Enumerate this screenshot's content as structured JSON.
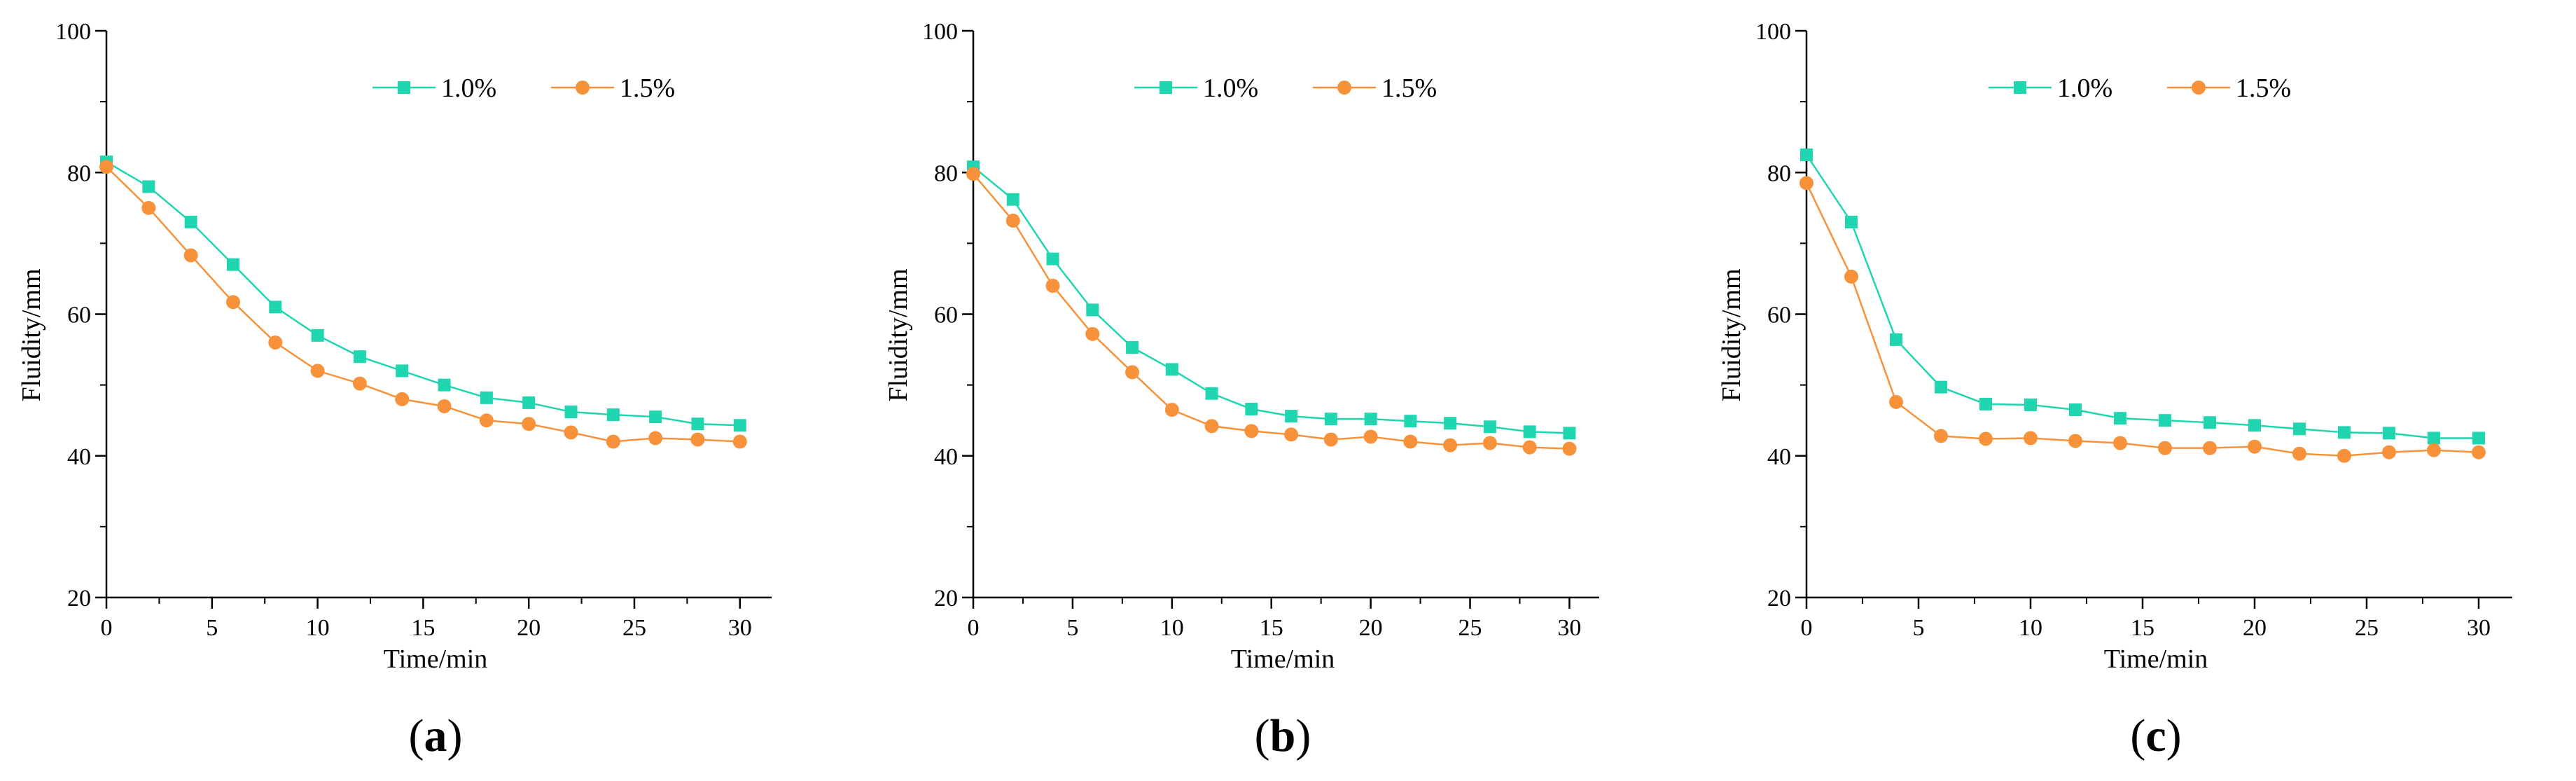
{
  "colors": {
    "series_1": "#1fd6b0",
    "series_2": "#f7923a",
    "axis": "#000000"
  },
  "chart_data": [
    {
      "type": "line",
      "panel_label": "(a)",
      "panel_letter": "a",
      "xlabel": "Time/min",
      "ylabel": "Fluidity/mm",
      "xlim": [
        0,
        31.5
      ],
      "ylim": [
        20,
        100
      ],
      "xticks": [
        0,
        5,
        10,
        15,
        20,
        25,
        30
      ],
      "yticks": [
        20,
        40,
        60,
        80,
        100
      ],
      "x": [
        0,
        2,
        4,
        6,
        8,
        10,
        12,
        14,
        16,
        18,
        20,
        22,
        24,
        26,
        28,
        30
      ],
      "series": [
        {
          "name": "1.0%",
          "marker": "square",
          "values": [
            81.5,
            78,
            73,
            67,
            61,
            57,
            54,
            52,
            50,
            48.2,
            47.5,
            46.2,
            45.8,
            45.5,
            44.5,
            44.3
          ]
        },
        {
          "name": "1.5%",
          "marker": "circle",
          "values": [
            80.8,
            75,
            68.3,
            61.7,
            56,
            52,
            50.2,
            48,
            47,
            45,
            44.5,
            43.3,
            42,
            42.5,
            42.3,
            42
          ]
        }
      ],
      "legend": "top-center"
    },
    {
      "type": "line",
      "panel_label": "(b)",
      "panel_letter": "b",
      "xlabel": "Time/min",
      "ylabel": "Fluidity/mm",
      "xlim": [
        0,
        31.5
      ],
      "ylim": [
        20,
        100
      ],
      "xticks": [
        0,
        5,
        10,
        15,
        20,
        25,
        30
      ],
      "yticks": [
        20,
        40,
        60,
        80,
        100
      ],
      "x": [
        0,
        2,
        4,
        6,
        8,
        10,
        12,
        14,
        16,
        18,
        20,
        22,
        24,
        26,
        28,
        30
      ],
      "series": [
        {
          "name": "1.0%",
          "marker": "square",
          "values": [
            80.8,
            76.2,
            67.8,
            60.6,
            55.3,
            52.2,
            48.8,
            46.6,
            45.6,
            45.2,
            45.2,
            44.9,
            44.6,
            44.1,
            43.4,
            43.2
          ]
        },
        {
          "name": "1.5%",
          "marker": "circle",
          "values": [
            79.8,
            73.2,
            64,
            57.2,
            51.8,
            46.5,
            44.2,
            43.5,
            43,
            42.3,
            42.7,
            42,
            41.5,
            41.8,
            41.2,
            41
          ]
        }
      ],
      "legend": "top-center"
    },
    {
      "type": "line",
      "panel_label": "(c)",
      "panel_letter": "c",
      "xlabel": "Time/min",
      "ylabel": "Fluidity/mm",
      "xlim": [
        0,
        31.5
      ],
      "ylim": [
        20,
        100
      ],
      "xticks": [
        0,
        5,
        10,
        15,
        20,
        25,
        30
      ],
      "yticks": [
        20,
        40,
        60,
        80,
        100
      ],
      "x": [
        0,
        2,
        4,
        6,
        8,
        10,
        12,
        14,
        16,
        18,
        20,
        22,
        24,
        26,
        28,
        30
      ],
      "series": [
        {
          "name": "1.0%",
          "marker": "square",
          "values": [
            82.5,
            73,
            56.4,
            49.7,
            47.3,
            47.2,
            46.5,
            45.3,
            45,
            44.7,
            44.3,
            43.8,
            43.3,
            43.2,
            42.5,
            42.5
          ]
        },
        {
          "name": "1.5%",
          "marker": "circle",
          "values": [
            78.5,
            65.3,
            47.6,
            42.8,
            42.4,
            42.5,
            42.1,
            41.8,
            41.1,
            41.1,
            41.3,
            40.3,
            40,
            40.5,
            40.8,
            40.5
          ]
        }
      ],
      "legend": "top-center"
    }
  ]
}
